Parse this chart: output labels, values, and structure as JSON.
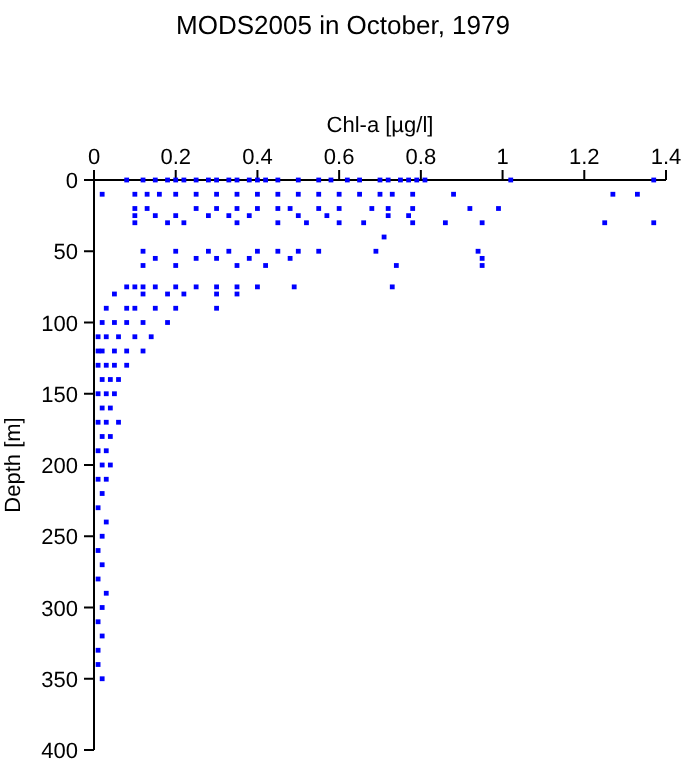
{
  "chart_data": {
    "type": "scatter",
    "title": "MODS2005 in October, 1979",
    "xlabel": "Chl-a [µg/l]",
    "ylabel": "Depth [m]",
    "xlim": [
      0,
      1.4
    ],
    "xticks": [
      0,
      0.2,
      0.4,
      0.6,
      0.8,
      1,
      1.2,
      1.4
    ],
    "ylim": [
      400,
      0
    ],
    "yticks": [
      0,
      50,
      100,
      150,
      200,
      250,
      300,
      350,
      400
    ],
    "marker": "square",
    "grid": false,
    "series": [
      {
        "color": "#0000ff",
        "x": [
          0.08,
          0.12,
          0.15,
          0.18,
          0.2,
          0.22,
          0.25,
          0.28,
          0.3,
          0.33,
          0.35,
          0.38,
          0.4,
          0.42,
          0.45,
          0.5,
          0.55,
          0.58,
          0.62,
          0.65,
          0.7,
          0.72,
          0.75,
          0.77,
          0.79,
          0.81,
          1.02,
          1.37,
          0.02,
          0.1,
          0.13,
          0.16,
          0.2,
          0.25,
          0.3,
          0.35,
          0.4,
          0.45,
          0.5,
          0.55,
          0.6,
          0.65,
          0.7,
          0.73,
          0.78,
          0.88,
          1.27,
          1.33,
          0.1,
          0.13,
          0.25,
          0.3,
          0.35,
          0.4,
          0.45,
          0.48,
          0.55,
          0.6,
          0.68,
          0.72,
          0.78,
          0.92,
          0.99,
          0.1,
          0.15,
          0.2,
          0.28,
          0.33,
          0.38,
          0.5,
          0.57,
          0.72,
          0.77,
          0.1,
          0.18,
          0.22,
          0.35,
          0.45,
          0.52,
          0.6,
          0.66,
          0.78,
          0.86,
          0.95,
          1.25,
          1.37,
          0.71,
          0.12,
          0.2,
          0.28,
          0.33,
          0.4,
          0.45,
          0.5,
          0.55,
          0.69,
          0.94,
          0.15,
          0.25,
          0.3,
          0.38,
          0.48,
          0.95,
          0.12,
          0.2,
          0.35,
          0.42,
          0.74,
          0.95,
          0.08,
          0.1,
          0.12,
          0.15,
          0.2,
          0.25,
          0.3,
          0.35,
          0.4,
          0.49,
          0.73,
          0.05,
          0.12,
          0.18,
          0.22,
          0.3,
          0.35,
          0.03,
          0.08,
          0.1,
          0.15,
          0.2,
          0.3,
          0.02,
          0.05,
          0.08,
          0.12,
          0.18,
          0.01,
          0.03,
          0.06,
          0.1,
          0.14,
          0.01,
          0.02,
          0.05,
          0.08,
          0.12,
          0.01,
          0.03,
          0.05,
          0.08,
          0.02,
          0.04,
          0.06,
          0.01,
          0.03,
          0.05,
          0.02,
          0.04,
          0.01,
          0.03,
          0.06,
          0.02,
          0.04,
          0.01,
          0.03,
          0.02,
          0.04,
          0.01,
          0.03,
          0.02,
          0.01,
          0.03,
          0.02,
          0.01,
          0.02,
          0.01,
          0.03,
          0.02,
          0.01,
          0.02,
          0.01,
          0.01,
          0.02
        ],
        "values": [
          0,
          0,
          0,
          0,
          0,
          0,
          0,
          0,
          0,
          0,
          0,
          0,
          0,
          0,
          0,
          0,
          0,
          0,
          0,
          0,
          0,
          0,
          0,
          0,
          0,
          0,
          0,
          0,
          10,
          10,
          10,
          10,
          10,
          10,
          10,
          10,
          10,
          10,
          10,
          10,
          10,
          10,
          10,
          10,
          10,
          10,
          10,
          10,
          20,
          20,
          20,
          20,
          20,
          20,
          20,
          20,
          20,
          20,
          20,
          20,
          20,
          20,
          20,
          25,
          25,
          25,
          25,
          25,
          25,
          25,
          25,
          25,
          25,
          30,
          30,
          30,
          30,
          30,
          30,
          30,
          30,
          30,
          30,
          30,
          30,
          30,
          40,
          50,
          50,
          50,
          50,
          50,
          50,
          50,
          50,
          50,
          50,
          55,
          55,
          55,
          55,
          55,
          55,
          60,
          60,
          60,
          60,
          60,
          60,
          75,
          75,
          75,
          75,
          75,
          75,
          75,
          75,
          75,
          75,
          75,
          80,
          80,
          80,
          80,
          80,
          80,
          90,
          90,
          90,
          90,
          90,
          90,
          100,
          100,
          100,
          100,
          100,
          110,
          110,
          110,
          110,
          110,
          120,
          120,
          120,
          120,
          120,
          130,
          130,
          130,
          130,
          140,
          140,
          140,
          150,
          150,
          150,
          160,
          160,
          170,
          170,
          170,
          180,
          180,
          190,
          190,
          200,
          200,
          210,
          210,
          220,
          230,
          240,
          250,
          260,
          270,
          280,
          290,
          300,
          310,
          320,
          330,
          340,
          350
        ]
      }
    ]
  }
}
